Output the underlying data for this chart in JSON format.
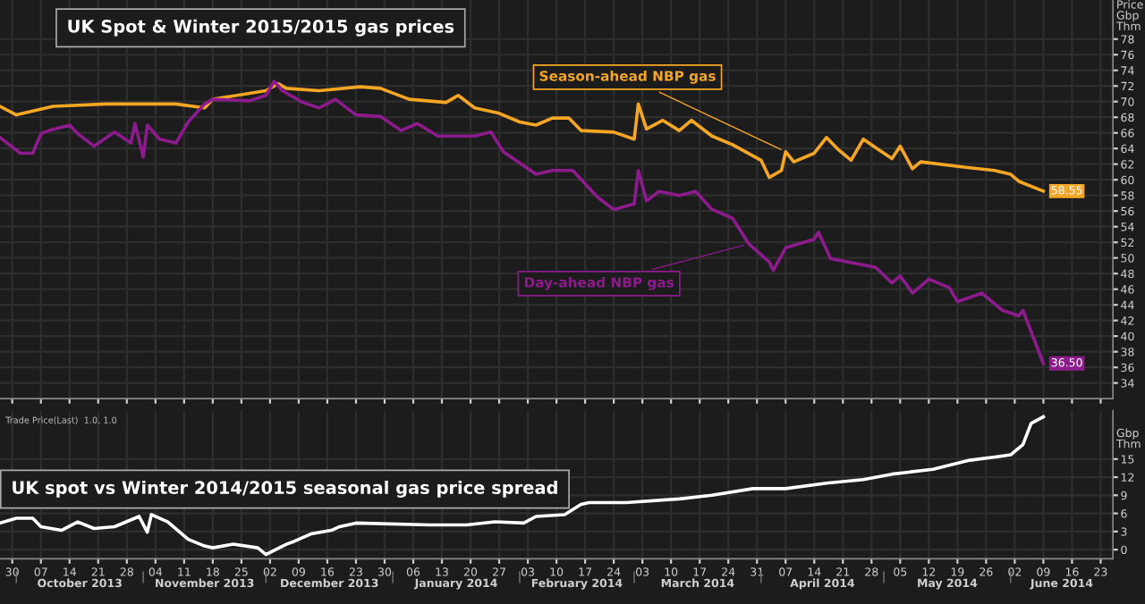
{
  "chart_data": [
    {
      "type": "line",
      "title": "UK Spot & Winter 2015/2015 gas prices",
      "ylabel": "Price\nGbp\nThm",
      "series": [
        {
          "name": "Season-ahead NBP gas",
          "color": "#f5a623",
          "x": [
            "2013-09-27",
            "2013-10-01",
            "2013-10-10",
            "2013-10-23",
            "2013-11-09",
            "2013-11-16",
            "2013-11-18",
            "2013-12-01",
            "2013-12-04",
            "2013-12-06",
            "2013-12-14",
            "2013-12-24",
            "2013-12-29",
            "2014-01-05",
            "2014-01-14",
            "2014-01-17",
            "2014-01-21",
            "2014-01-27",
            "2014-02-01",
            "2014-02-05",
            "2014-02-09",
            "2014-02-13",
            "2014-02-16",
            "2014-02-24",
            "2014-03-01",
            "2014-03-02",
            "2014-03-04",
            "2014-03-08",
            "2014-03-12",
            "2014-03-15",
            "2014-03-20",
            "2014-03-25",
            "2014-04-01",
            "2014-04-03",
            "2014-04-06",
            "2014-04-07",
            "2014-04-09",
            "2014-04-14",
            "2014-04-17",
            "2014-04-20",
            "2014-04-23",
            "2014-04-26",
            "2014-04-29",
            "2014-05-03",
            "2014-05-05",
            "2014-05-08",
            "2014-05-10",
            "2014-05-21",
            "2014-05-28",
            "2014-06-01",
            "2014-06-03",
            "2014-06-09"
          ],
          "values": [
            69.4,
            68.3,
            69.4,
            69.7,
            69.7,
            69.2,
            70.3,
            71.4,
            72.3,
            71.7,
            71.4,
            71.9,
            71.7,
            70.3,
            69.9,
            70.8,
            69.2,
            68.5,
            67.4,
            67,
            67.9,
            67.9,
            66.3,
            66.1,
            65.2,
            69.7,
            66.5,
            67.6,
            66.3,
            67.6,
            65.6,
            64.5,
            62.5,
            60.3,
            61.2,
            63.6,
            62.3,
            63.4,
            65.4,
            63.8,
            62.5,
            65.2,
            64.1,
            62.7,
            64.3,
            61.4,
            62.3,
            61.6,
            61.2,
            60.7,
            59.8,
            58.55
          ],
          "value_labels": [
            null,
            null,
            null,
            null,
            null,
            null,
            null,
            null,
            null,
            null,
            null,
            null,
            null,
            null,
            null,
            null,
            null,
            null,
            null,
            null,
            null,
            null,
            null,
            null,
            null,
            null,
            null,
            null,
            null,
            null,
            null,
            null,
            null,
            null,
            null,
            null,
            null,
            null,
            null,
            null,
            null,
            null,
            null,
            null,
            null,
            null,
            null,
            null,
            null,
            null,
            null,
            "58.55"
          ]
        },
        {
          "name": "Day-ahead NBP gas",
          "color": "#8e1b8e",
          "x": [
            "2013-09-27",
            "2013-10-02",
            "2013-10-05",
            "2013-10-07",
            "2013-10-09",
            "2013-10-14",
            "2013-10-16",
            "2013-10-20",
            "2013-10-25",
            "2013-10-29",
            "2013-10-30",
            "2013-11-01",
            "2013-11-02",
            "2013-11-05",
            "2013-11-09",
            "2013-11-12",
            "2013-11-16",
            "2013-11-18",
            "2013-11-27",
            "2013-12-01",
            "2013-12-03",
            "2013-12-05",
            "2013-12-10",
            "2013-12-14",
            "2013-12-18",
            "2013-12-23",
            "2013-12-29",
            "2014-01-03",
            "2014-01-07",
            "2014-01-12",
            "2014-01-21",
            "2014-01-25",
            "2014-01-28",
            "2014-02-05",
            "2014-02-09",
            "2014-02-14",
            "2014-02-20",
            "2014-02-24",
            "2014-03-01",
            "2014-03-02",
            "2014-03-04",
            "2014-03-07",
            "2014-03-12",
            "2014-03-16",
            "2014-03-20",
            "2014-03-25",
            "2014-03-29",
            "2014-04-03",
            "2014-04-04",
            "2014-04-07",
            "2014-04-14",
            "2014-04-15",
            "2014-04-18",
            "2014-04-22",
            "2014-04-29",
            "2014-05-03",
            "2014-05-05",
            "2014-05-08",
            "2014-05-12",
            "2014-05-17",
            "2014-05-19",
            "2014-05-25",
            "2014-05-30",
            "2014-06-03",
            "2014-06-04",
            "2014-06-09"
          ],
          "values": [
            65.4,
            63.4,
            63.4,
            65.9,
            66.3,
            67,
            65.9,
            64.3,
            66.1,
            64.7,
            67.2,
            62.9,
            67,
            65.2,
            64.7,
            67.4,
            69.7,
            70.3,
            70.1,
            70.8,
            72.6,
            71.4,
            69.9,
            69.2,
            70.3,
            68.3,
            68.1,
            66.3,
            67.2,
            65.6,
            65.6,
            66.1,
            63.6,
            60.7,
            61.2,
            61.2,
            57.8,
            56.2,
            56.9,
            61.2,
            57.3,
            58.5,
            58,
            58.5,
            56.2,
            55.1,
            51.8,
            49.5,
            48.4,
            51.3,
            52.4,
            53.3,
            49.9,
            49.5,
            48.8,
            46.8,
            47.7,
            45.5,
            47.3,
            46.2,
            44.4,
            45.5,
            43.3,
            42.6,
            43.3,
            36.5
          ],
          "value_labels": [
            null,
            null,
            null,
            null,
            null,
            null,
            null,
            null,
            null,
            null,
            null,
            null,
            null,
            null,
            null,
            null,
            null,
            null,
            null,
            null,
            null,
            null,
            null,
            null,
            null,
            null,
            null,
            null,
            null,
            null,
            null,
            null,
            null,
            null,
            null,
            null,
            null,
            null,
            null,
            null,
            null,
            null,
            null,
            null,
            null,
            null,
            null,
            null,
            null,
            null,
            null,
            null,
            null,
            null,
            null,
            null,
            null,
            null,
            null,
            null,
            null,
            null,
            null,
            null,
            null,
            "36.50"
          ]
        }
      ],
      "xlim": [
        "2013-09-27",
        "2014-06-26"
      ],
      "ylim": [
        32,
        83
      ],
      "xticks": [
        {
          "value": "2013-09-30",
          "label": null
        },
        {
          "value": "2013-10-07",
          "label": null
        },
        {
          "value": "2013-10-14",
          "label": null
        },
        {
          "value": "2013-10-21",
          "label": null
        },
        {
          "value": "2013-10-28",
          "label": null
        },
        {
          "value": "2013-11-04",
          "label": null
        },
        {
          "value": "2013-11-11",
          "label": null
        },
        {
          "value": "2013-11-18",
          "label": null
        },
        {
          "value": "2013-11-25",
          "label": null
        },
        {
          "value": "2013-12-02",
          "label": null
        },
        {
          "value": "2013-12-09",
          "label": null
        },
        {
          "value": "2013-12-16",
          "label": null
        },
        {
          "value": "2013-12-23",
          "label": null
        },
        {
          "value": "2013-12-30",
          "label": null
        },
        {
          "value": "2014-01-06",
          "label": null
        },
        {
          "value": "2014-01-13",
          "label": null
        },
        {
          "value": "2014-01-20",
          "label": null
        },
        {
          "value": "2014-01-27",
          "label": null
        },
        {
          "value": "2014-02-03",
          "label": null
        },
        {
          "value": "2014-02-10",
          "label": null
        },
        {
          "value": "2014-02-17",
          "label": null
        },
        {
          "value": "2014-02-24",
          "label": null
        },
        {
          "value": "2014-03-03",
          "label": null
        },
        {
          "value": "2014-03-10",
          "label": null
        },
        {
          "value": "2014-03-17",
          "label": null
        },
        {
          "value": "2014-03-24",
          "label": null
        },
        {
          "value": "2014-03-31",
          "label": null
        },
        {
          "value": "2014-04-07",
          "label": null
        },
        {
          "value": "2014-04-14",
          "label": null
        },
        {
          "value": "2014-04-21",
          "label": null
        },
        {
          "value": "2014-04-28",
          "label": null
        },
        {
          "value": "2014-05-05",
          "label": null
        },
        {
          "value": "2014-05-12",
          "label": null
        },
        {
          "value": "2014-05-19",
          "label": null
        },
        {
          "value": "2014-05-26",
          "label": null
        },
        {
          "value": "2014-06-02",
          "label": null
        },
        {
          "value": "2014-06-09",
          "label": null
        },
        {
          "value": "2014-06-16",
          "label": null
        },
        {
          "value": "2014-06-23",
          "label": null
        }
      ],
      "yticks": [
        34,
        36,
        38,
        40,
        42,
        44,
        46,
        48,
        50,
        52,
        54,
        56,
        58,
        60,
        62,
        64,
        66,
        68,
        70,
        72,
        74,
        76,
        78
      ],
      "tick_labels": "y",
      "grid": true,
      "legend": false
    },
    {
      "type": "line",
      "title": "UK spot vs Winter 2014/2015 seasonal gas price spread",
      "ylabel": "Gbp\nThm",
      "series": [
        {
          "color": "#ffffff",
          "x": [
            "2013-09-27",
            "2013-10-01",
            "2013-10-05",
            "2013-10-07",
            "2013-10-12",
            "2013-10-16",
            "2013-10-20",
            "2013-10-25",
            "2013-10-31",
            "2013-11-02",
            "2013-11-03",
            "2013-11-07",
            "2013-11-12",
            "2013-11-16",
            "2013-11-18",
            "2013-11-23",
            "2013-11-29",
            "2013-12-01",
            "2013-12-06",
            "2013-12-08",
            "2013-12-12",
            "2013-12-17",
            "2013-12-19",
            "2013-12-23",
            "2014-01-10",
            "2014-01-19",
            "2014-01-26",
            "2014-02-02",
            "2014-02-05",
            "2014-02-12",
            "2014-02-16",
            "2014-02-18",
            "2014-02-27",
            "2014-03-12",
            "2014-03-20",
            "2014-03-30",
            "2014-04-07",
            "2014-04-17",
            "2014-04-26",
            "2014-05-03",
            "2014-05-13",
            "2014-05-22",
            "2014-05-29",
            "2014-06-01",
            "2014-06-04",
            "2014-06-06",
            "2014-06-09"
          ],
          "values": [
            4.4,
            5.2,
            5.2,
            3.8,
            3.2,
            4.6,
            3.5,
            3.8,
            5.5,
            2.9,
            5.8,
            4.6,
            1.7,
            0.6,
            0.3,
            0.9,
            0.3,
            -0.8,
            0.9,
            1.4,
            2.6,
            3.2,
            3.8,
            4.4,
            4.1,
            4.1,
            4.6,
            4.4,
            5.5,
            5.8,
            7.5,
            7.8,
            7.8,
            8.4,
            9,
            10.1,
            10.1,
            11,
            11.6,
            12.5,
            13.3,
            14.8,
            15.4,
            15.7,
            17.4,
            20.9,
            22
          ]
        }
      ],
      "annotations": [
        "Trade Price(Last)  1.0, 1.0",
        "October 2013",
        "November 2013",
        "December 2013",
        "January 2014",
        "February 2014",
        "March 2014",
        "April 2014",
        "May 2014",
        "June 2014"
      ],
      "xlim": [
        "2013-09-27",
        "2014-06-26"
      ],
      "ylim": [
        -1.5,
        23
      ],
      "xticks": [
        {
          "value": "2013-09-30",
          "label": "30"
        },
        {
          "value": "2013-10-07",
          "label": "07"
        },
        {
          "value": "2013-10-14",
          "label": "14"
        },
        {
          "value": "2013-10-21",
          "label": "21"
        },
        {
          "value": "2013-10-28",
          "label": "28"
        },
        {
          "value": "2013-11-04",
          "label": "04"
        },
        {
          "value": "2013-11-11",
          "label": "11"
        },
        {
          "value": "2013-11-18",
          "label": "18"
        },
        {
          "value": "2013-11-25",
          "label": "25"
        },
        {
          "value": "2013-12-02",
          "label": "02"
        },
        {
          "value": "2013-12-09",
          "label": "09"
        },
        {
          "value": "2013-12-16",
          "label": "16"
        },
        {
          "value": "2013-12-23",
          "label": "23"
        },
        {
          "value": "2013-12-30",
          "label": "30"
        },
        {
          "value": "2014-01-06",
          "label": "06"
        },
        {
          "value": "2014-01-13",
          "label": "13"
        },
        {
          "value": "2014-01-20",
          "label": "20"
        },
        {
          "value": "2014-01-27",
          "label": "27"
        },
        {
          "value": "2014-02-03",
          "label": "03"
        },
        {
          "value": "2014-02-10",
          "label": "10"
        },
        {
          "value": "2014-02-17",
          "label": "17"
        },
        {
          "value": "2014-02-24",
          "label": "24"
        },
        {
          "value": "2014-03-03",
          "label": "03"
        },
        {
          "value": "2014-03-10",
          "label": "10"
        },
        {
          "value": "2014-03-17",
          "label": "17"
        },
        {
          "value": "2014-03-24",
          "label": "24"
        },
        {
          "value": "2014-03-31",
          "label": "31"
        },
        {
          "value": "2014-04-07",
          "label": "07"
        },
        {
          "value": "2014-04-14",
          "label": "14"
        },
        {
          "value": "2014-04-21",
          "label": "21"
        },
        {
          "value": "2014-04-28",
          "label": "28"
        },
        {
          "value": "2014-05-05",
          "label": "05"
        },
        {
          "value": "2014-05-12",
          "label": "12"
        },
        {
          "value": "2014-05-19",
          "label": "19"
        },
        {
          "value": "2014-05-26",
          "label": "26"
        },
        {
          "value": "2014-06-02",
          "label": "02"
        },
        {
          "value": "2014-06-09",
          "label": "09"
        },
        {
          "value": "2014-06-16",
          "label": "16"
        },
        {
          "value": "2014-06-23",
          "label": "23"
        }
      ],
      "yticks": [
        0,
        3,
        6,
        9,
        12,
        15
      ],
      "grid": true,
      "legend": false
    }
  ]
}
